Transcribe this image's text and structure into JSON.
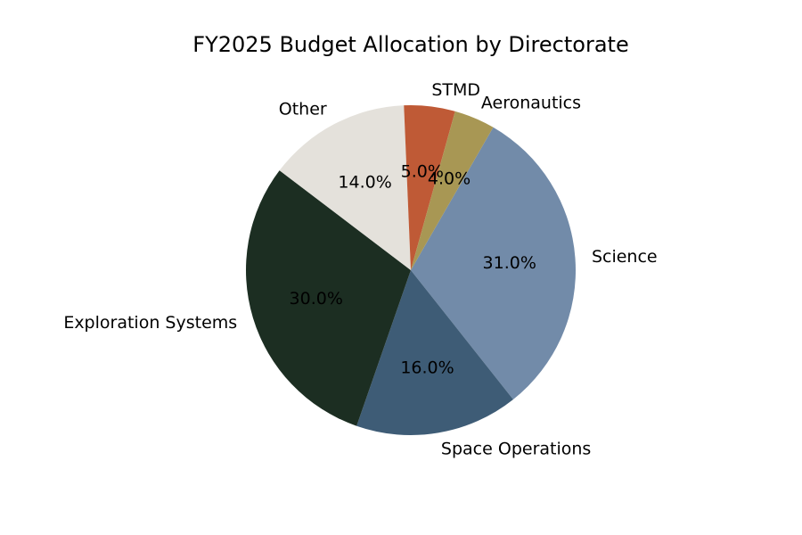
{
  "chart_data": {
    "type": "pie",
    "title": "FY2025 Budget Allocation by Directorate",
    "slices": [
      {
        "label": "Science",
        "value": 31.0,
        "pct_label": "31.0%",
        "color": "#728ba9"
      },
      {
        "label": "Space Operations",
        "value": 16.0,
        "pct_label": "16.0%",
        "color": "#3e5c76"
      },
      {
        "label": "Exploration Systems",
        "value": 30.0,
        "pct_label": "30.0%",
        "color": "#1c2e22"
      },
      {
        "label": "Other",
        "value": 14.0,
        "pct_label": "14.0%",
        "color": "#e4e1db"
      },
      {
        "label": "STMD",
        "value": 5.0,
        "pct_label": "5.0%",
        "color": "#bf5a36"
      },
      {
        "label": "Aeronautics",
        "value": 4.0,
        "pct_label": "4.0%",
        "color": "#a89754"
      }
    ],
    "start_angle_deg": 60,
    "direction": "clockwise",
    "legend": "none"
  }
}
